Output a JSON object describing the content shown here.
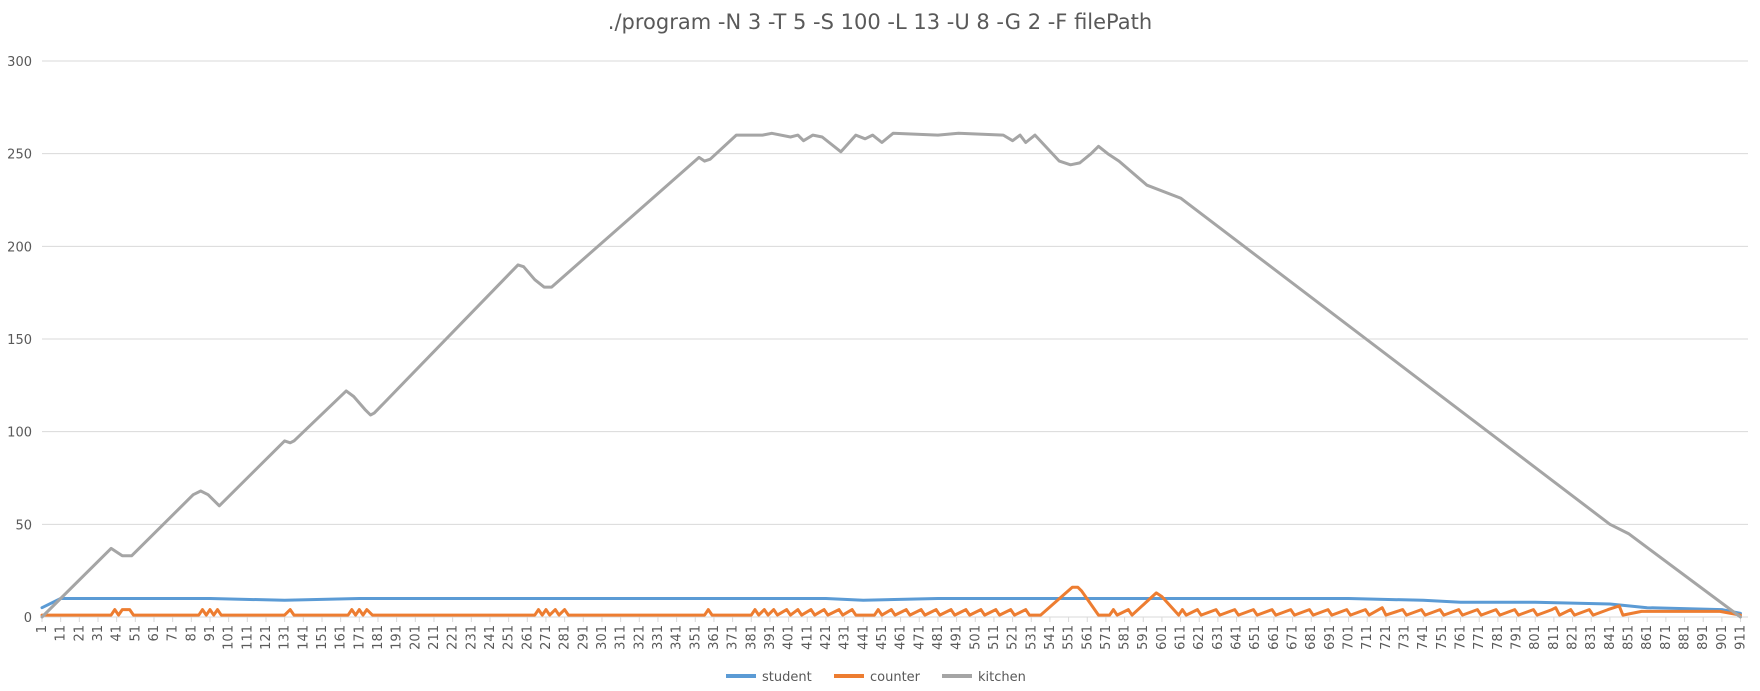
{
  "chart_data": {
    "type": "line",
    "title": "./program -N 3 -T 5 -S 100 -L 13 -U 8 -G 2 -F filePath",
    "xlabel": "",
    "ylabel": "",
    "xlim": [
      1,
      915
    ],
    "ylim": [
      0,
      300
    ],
    "yticks": [
      0,
      50,
      100,
      150,
      200,
      250,
      300
    ],
    "x_tick_start": 1,
    "x_tick_step": 10,
    "x_tick_end": 911,
    "grid": true,
    "legend_position": "bottom",
    "series": [
      {
        "name": "student",
        "color": "#5b9bd5",
        "points": [
          [
            1,
            5
          ],
          [
            11,
            10
          ],
          [
            41,
            10
          ],
          [
            91,
            10
          ],
          [
            131,
            9
          ],
          [
            171,
            10
          ],
          [
            221,
            10
          ],
          [
            261,
            10
          ],
          [
            301,
            10
          ],
          [
            341,
            10
          ],
          [
            381,
            10
          ],
          [
            421,
            10
          ],
          [
            441,
            9
          ],
          [
            481,
            10
          ],
          [
            521,
            10
          ],
          [
            551,
            10
          ],
          [
            571,
            10
          ],
          [
            601,
            10
          ],
          [
            651,
            10
          ],
          [
            701,
            10
          ],
          [
            741,
            9
          ],
          [
            761,
            8
          ],
          [
            801,
            8
          ],
          [
            841,
            7
          ],
          [
            861,
            5
          ],
          [
            901,
            4
          ],
          [
            911,
            2
          ]
        ]
      },
      {
        "name": "counter",
        "color": "#ed7d31",
        "points": [
          [
            1,
            1
          ],
          [
            38,
            1
          ],
          [
            40,
            4
          ],
          [
            42,
            1
          ],
          [
            44,
            4
          ],
          [
            48,
            4
          ],
          [
            50,
            1
          ],
          [
            85,
            1
          ],
          [
            87,
            4
          ],
          [
            89,
            1
          ],
          [
            91,
            4
          ],
          [
            93,
            1
          ],
          [
            95,
            4
          ],
          [
            97,
            1
          ],
          [
            131,
            1
          ],
          [
            134,
            4
          ],
          [
            136,
            1
          ],
          [
            165,
            1
          ],
          [
            167,
            4
          ],
          [
            169,
            1
          ],
          [
            171,
            4
          ],
          [
            173,
            1
          ],
          [
            175,
            4
          ],
          [
            178,
            1
          ],
          [
            265,
            1
          ],
          [
            267,
            4
          ],
          [
            269,
            1
          ],
          [
            271,
            4
          ],
          [
            273,
            1
          ],
          [
            276,
            4
          ],
          [
            278,
            1
          ],
          [
            281,
            4
          ],
          [
            283,
            1
          ],
          [
            356,
            1
          ],
          [
            358,
            4
          ],
          [
            360,
            1
          ],
          [
            381,
            1
          ],
          [
            383,
            4
          ],
          [
            385,
            1
          ],
          [
            388,
            4
          ],
          [
            390,
            1
          ],
          [
            393,
            4
          ],
          [
            395,
            1
          ],
          [
            400,
            4
          ],
          [
            402,
            1
          ],
          [
            406,
            4
          ],
          [
            408,
            1
          ],
          [
            413,
            4
          ],
          [
            415,
            1
          ],
          [
            420,
            4
          ],
          [
            422,
            1
          ],
          [
            428,
            4
          ],
          [
            430,
            1
          ],
          [
            435,
            4
          ],
          [
            437,
            1
          ],
          [
            447,
            1
          ],
          [
            449,
            4
          ],
          [
            451,
            1
          ],
          [
            456,
            4
          ],
          [
            458,
            1
          ],
          [
            464,
            4
          ],
          [
            466,
            1
          ],
          [
            472,
            4
          ],
          [
            474,
            1
          ],
          [
            480,
            4
          ],
          [
            482,
            1
          ],
          [
            488,
            4
          ],
          [
            490,
            1
          ],
          [
            496,
            4
          ],
          [
            498,
            1
          ],
          [
            504,
            4
          ],
          [
            506,
            1
          ],
          [
            512,
            4
          ],
          [
            514,
            1
          ],
          [
            520,
            4
          ],
          [
            522,
            1
          ],
          [
            528,
            4
          ],
          [
            530,
            1
          ],
          [
            536,
            1
          ],
          [
            553,
            16
          ],
          [
            556,
            16
          ],
          [
            558,
            14
          ],
          [
            567,
            1
          ],
          [
            573,
            1
          ],
          [
            575,
            4
          ],
          [
            577,
            1
          ],
          [
            583,
            4
          ],
          [
            585,
            1
          ],
          [
            598,
            13
          ],
          [
            601,
            11
          ],
          [
            610,
            1
          ],
          [
            612,
            4
          ],
          [
            614,
            1
          ],
          [
            620,
            4
          ],
          [
            622,
            1
          ],
          [
            630,
            4
          ],
          [
            632,
            1
          ],
          [
            640,
            4
          ],
          [
            642,
            1
          ],
          [
            650,
            4
          ],
          [
            652,
            1
          ],
          [
            660,
            4
          ],
          [
            662,
            1
          ],
          [
            670,
            4
          ],
          [
            672,
            1
          ],
          [
            680,
            4
          ],
          [
            682,
            1
          ],
          [
            690,
            4
          ],
          [
            692,
            1
          ],
          [
            700,
            4
          ],
          [
            702,
            1
          ],
          [
            710,
            4
          ],
          [
            712,
            1
          ],
          [
            719,
            5
          ],
          [
            721,
            1
          ],
          [
            730,
            4
          ],
          [
            732,
            1
          ],
          [
            740,
            4
          ],
          [
            742,
            1
          ],
          [
            750,
            4
          ],
          [
            752,
            1
          ],
          [
            760,
            4
          ],
          [
            762,
            1
          ],
          [
            770,
            4
          ],
          [
            772,
            1
          ],
          [
            780,
            4
          ],
          [
            782,
            1
          ],
          [
            790,
            4
          ],
          [
            792,
            1
          ],
          [
            800,
            4
          ],
          [
            802,
            1
          ],
          [
            810,
            4
          ],
          [
            812,
            5
          ],
          [
            814,
            1
          ],
          [
            820,
            4
          ],
          [
            822,
            1
          ],
          [
            830,
            4
          ],
          [
            832,
            1
          ],
          [
            840,
            4
          ],
          [
            846,
            6
          ],
          [
            848,
            1
          ],
          [
            858,
            3
          ],
          [
            870,
            3
          ],
          [
            880,
            3
          ],
          [
            890,
            3
          ],
          [
            900,
            3
          ],
          [
            911,
            1
          ]
        ]
      },
      {
        "name": "kitchen",
        "color": "#a5a5a5",
        "points": [
          [
            1,
            0
          ],
          [
            38,
            37
          ],
          [
            44,
            33
          ],
          [
            49,
            33
          ],
          [
            82,
            66
          ],
          [
            86,
            68
          ],
          [
            90,
            66
          ],
          [
            96,
            60
          ],
          [
            131,
            95
          ],
          [
            134,
            94
          ],
          [
            136,
            95
          ],
          [
            164,
            122
          ],
          [
            168,
            119
          ],
          [
            174,
            112
          ],
          [
            177,
            109
          ],
          [
            179,
            110
          ],
          [
            256,
            190
          ],
          [
            259,
            189
          ],
          [
            265,
            182
          ],
          [
            270,
            178
          ],
          [
            274,
            178
          ],
          [
            353,
            248
          ],
          [
            356,
            246
          ],
          [
            359,
            247
          ],
          [
            373,
            260
          ],
          [
            387,
            260
          ],
          [
            392,
            261
          ],
          [
            402,
            259
          ],
          [
            406,
            260
          ],
          [
            409,
            257
          ],
          [
            414,
            260
          ],
          [
            419,
            259
          ],
          [
            429,
            251
          ],
          [
            437,
            260
          ],
          [
            442,
            258
          ],
          [
            446,
            260
          ],
          [
            451,
            256
          ],
          [
            457,
            261
          ],
          [
            481,
            260
          ],
          [
            492,
            261
          ],
          [
            516,
            260
          ],
          [
            521,
            257
          ],
          [
            525,
            260
          ],
          [
            528,
            256
          ],
          [
            533,
            260
          ],
          [
            546,
            246
          ],
          [
            552,
            244
          ],
          [
            557,
            245
          ],
          [
            563,
            250
          ],
          [
            567,
            254
          ],
          [
            572,
            250
          ],
          [
            578,
            246
          ],
          [
            593,
            233
          ],
          [
            611,
            226
          ],
          [
            841,
            50
          ],
          [
            851,
            45
          ],
          [
            911,
            0
          ]
        ]
      }
    ]
  }
}
